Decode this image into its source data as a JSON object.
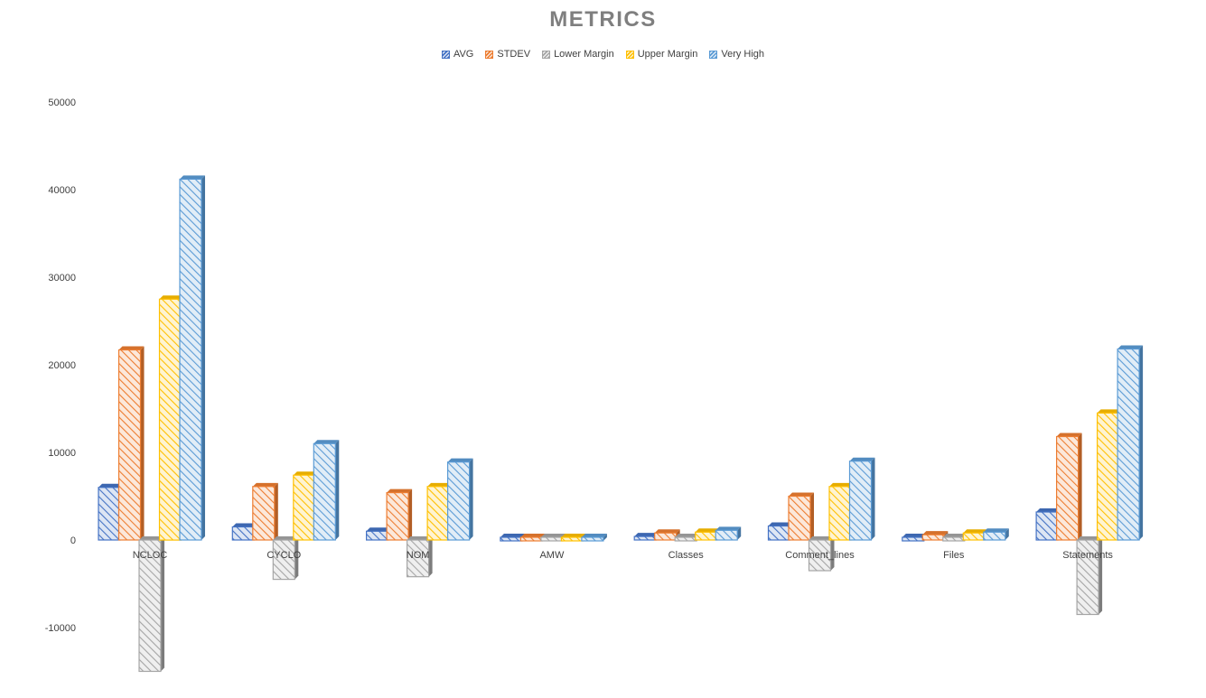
{
  "chart_data": {
    "type": "bar",
    "title": "METRICS",
    "categories": [
      "NCLOC",
      "CYCLO",
      "NOM",
      "AMW",
      "Classes",
      "Comment_lines",
      "Files",
      "Statements"
    ],
    "series": [
      {
        "name": "AVG",
        "color": "#4472c4",
        "values": [
          6000,
          1500,
          1000,
          200,
          400,
          1600,
          200,
          3200
        ]
      },
      {
        "name": "STDEV",
        "color": "#ed7d31",
        "values": [
          21700,
          6100,
          5400,
          250,
          800,
          5000,
          600,
          11800
        ]
      },
      {
        "name": "Lower Margin",
        "color": "#a5a5a5",
        "values": [
          -15000,
          -4500,
          -4200,
          100,
          -100,
          -3500,
          -200,
          -8500
        ]
      },
      {
        "name": "Upper Margin",
        "color": "#ffc000",
        "values": [
          27500,
          7400,
          6100,
          200,
          900,
          6100,
          800,
          14500
        ]
      },
      {
        "name": "Very High",
        "color": "#5b9bd5",
        "values": [
          41200,
          11000,
          8900,
          300,
          1100,
          9000,
          900,
          21800
        ]
      }
    ],
    "yticks": [
      "50000",
      "40000",
      "30000",
      "20000",
      "10000",
      "0",
      "-10000"
    ],
    "ytick_values": [
      50000,
      40000,
      30000,
      20000,
      10000,
      0,
      -10000
    ],
    "ylim": [
      -15000,
      50000
    ],
    "legend": "top",
    "grid": false
  }
}
